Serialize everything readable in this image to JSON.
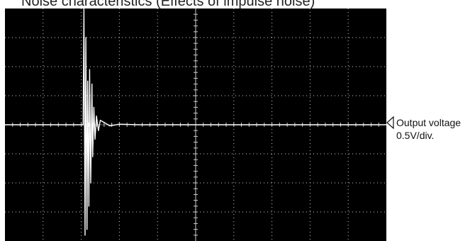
{
  "title": "Noise characteristics  (Effects of impulse noise)",
  "channel": {
    "label": "Output voltage",
    "scale": "0.5V/div."
  },
  "colors": {
    "screen": "#000000",
    "trace": "#ffffff",
    "grid": "#cfcfcf"
  },
  "chart_data": {
    "type": "line",
    "title": "Noise characteristics  (Effects of impulse noise)",
    "xlabel": "",
    "ylabel": "Output voltage",
    "ylabel_scale": "0.5V/div.",
    "grid": true,
    "x_divisions": 10,
    "y_divisions": 8,
    "xlim": [
      0,
      10
    ],
    "ylim": [
      -4,
      4
    ],
    "series": [
      {
        "x": [
          0,
          1.0,
          2.0,
          2.05,
          2.07,
          2.1,
          2.12,
          2.15,
          2.17,
          2.2,
          2.22,
          2.25,
          2.28,
          2.3,
          2.33,
          2.36,
          2.4,
          2.45,
          2.5,
          2.6,
          2.75,
          3.0,
          3.5,
          4.0,
          5.0,
          6.0,
          7.0,
          8.0,
          9.0,
          10.0
        ],
        "values": [
          0,
          0,
          0,
          0,
          4.0,
          -3.8,
          3.0,
          -3.6,
          1.5,
          -2.8,
          1.9,
          -2.0,
          1.4,
          -1.1,
          0.6,
          -0.5,
          0.3,
          -0.2,
          0.15,
          0.08,
          -0.04,
          0.02,
          0,
          0,
          0,
          0,
          0,
          0,
          0,
          0
        ]
      }
    ]
  }
}
